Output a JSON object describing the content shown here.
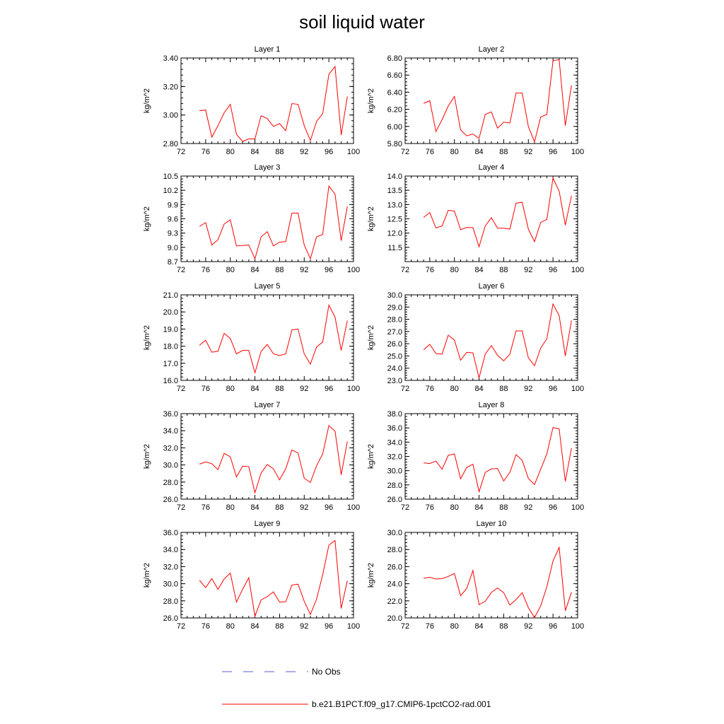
{
  "title": "soil liquid water",
  "legend": {
    "obs_label": "No Obs",
    "obs_color": "#5b5bd6",
    "model_label": "b.e21.B1PCT.f09_g17.CMIP6-1pctCO2-rad.001",
    "model_color": "#ff0000"
  },
  "chart_data": [
    {
      "type": "line",
      "title": "Layer 1",
      "ylabel": "kg/m^2",
      "xlim": [
        72,
        100
      ],
      "ylim": [
        2.8,
        3.4
      ],
      "xticks": [
        72,
        76,
        80,
        84,
        88,
        92,
        96,
        100
      ],
      "yticks": [
        "2.80",
        "3.00",
        "3.20",
        "3.40"
      ],
      "series": [
        {
          "color": "#ff0000",
          "x": [
            75,
            76,
            77,
            78,
            79,
            80,
            81,
            82,
            83,
            84,
            85,
            86,
            87,
            88,
            89,
            90,
            91,
            92,
            93,
            94,
            95,
            96,
            97,
            98,
            99
          ],
          "values": [
            3.03,
            3.035,
            2.845,
            2.925,
            3.015,
            3.075,
            2.865,
            2.815,
            2.832,
            2.832,
            2.995,
            2.975,
            2.92,
            2.94,
            2.89,
            3.08,
            3.075,
            2.925,
            2.82,
            2.955,
            3.01,
            3.285,
            3.34,
            2.86,
            3.13
          ]
        }
      ]
    },
    {
      "type": "line",
      "title": "Layer 2",
      "ylabel": "kg/m^2",
      "xlim": [
        72,
        100
      ],
      "ylim": [
        5.8,
        6.8
      ],
      "xticks": [
        72,
        76,
        80,
        84,
        88,
        92,
        96,
        100
      ],
      "yticks": [
        "5.80",
        "6.00",
        "6.20",
        "6.40",
        "6.60",
        "6.80"
      ],
      "series": [
        {
          "color": "#ff0000",
          "x": [
            75,
            76,
            77,
            78,
            79,
            80,
            81,
            82,
            83,
            84,
            85,
            86,
            87,
            88,
            89,
            90,
            91,
            92,
            93,
            94,
            95,
            96,
            97,
            98,
            99
          ],
          "values": [
            6.27,
            6.3,
            5.94,
            6.08,
            6.24,
            6.35,
            5.96,
            5.89,
            5.91,
            5.86,
            6.14,
            6.17,
            5.98,
            6.05,
            6.04,
            6.39,
            6.39,
            6.0,
            5.82,
            6.11,
            6.14,
            6.77,
            6.78,
            6.01,
            6.48
          ]
        }
      ]
    },
    {
      "type": "line",
      "title": "Layer 3",
      "ylabel": "kg/m^2",
      "xlim": [
        72,
        100
      ],
      "ylim": [
        8.7,
        10.5
      ],
      "xticks": [
        72,
        76,
        80,
        84,
        88,
        92,
        96,
        100
      ],
      "yticks": [
        "8.7",
        "9.0",
        "9.3",
        "9.6",
        "9.9",
        "10.2",
        "10.5"
      ],
      "series": [
        {
          "color": "#ff0000",
          "x": [
            75,
            76,
            77,
            78,
            79,
            80,
            81,
            82,
            83,
            84,
            85,
            86,
            87,
            88,
            89,
            90,
            91,
            92,
            93,
            94,
            95,
            96,
            97,
            98,
            99
          ],
          "values": [
            9.44,
            9.52,
            9.05,
            9.16,
            9.49,
            9.58,
            9.03,
            9.04,
            9.05,
            8.76,
            9.22,
            9.33,
            9.03,
            9.11,
            9.12,
            9.72,
            9.72,
            9.05,
            8.76,
            9.22,
            9.27,
            10.29,
            10.12,
            9.14,
            9.86
          ]
        }
      ]
    },
    {
      "type": "line",
      "title": "Layer 4",
      "ylabel": "kg/m^2",
      "xlim": [
        72,
        100
      ],
      "ylim": [
        11.0,
        14.0
      ],
      "xticks": [
        72,
        76,
        80,
        84,
        88,
        92,
        96,
        100
      ],
      "yticks": [
        "11.5",
        "12.0",
        "12.5",
        "13.0",
        "13.5",
        "14.0"
      ],
      "series": [
        {
          "color": "#ff0000",
          "x": [
            75,
            76,
            77,
            78,
            79,
            80,
            81,
            82,
            83,
            84,
            85,
            86,
            87,
            88,
            89,
            90,
            91,
            92,
            93,
            94,
            95,
            96,
            97,
            98,
            99
          ],
          "values": [
            12.55,
            12.72,
            12.18,
            12.25,
            12.8,
            12.77,
            12.12,
            12.2,
            12.19,
            11.52,
            12.25,
            12.54,
            12.17,
            12.17,
            12.14,
            13.05,
            13.08,
            12.14,
            11.7,
            12.37,
            12.48,
            13.93,
            13.47,
            12.28,
            13.31
          ]
        }
      ]
    },
    {
      "type": "line",
      "title": "Layer 5",
      "ylabel": "kg/m^2",
      "xlim": [
        72,
        100
      ],
      "ylim": [
        16.0,
        21.0
      ],
      "xticks": [
        72,
        76,
        80,
        84,
        88,
        92,
        96,
        100
      ],
      "yticks": [
        "16.0",
        "17.0",
        "18.0",
        "19.0",
        "20.0",
        "21.0"
      ],
      "series": [
        {
          "color": "#ff0000",
          "x": [
            75,
            76,
            77,
            78,
            79,
            80,
            81,
            82,
            83,
            84,
            85,
            86,
            87,
            88,
            89,
            90,
            91,
            92,
            93,
            94,
            95,
            96,
            97,
            98,
            99
          ],
          "values": [
            18.05,
            18.35,
            17.65,
            17.7,
            18.75,
            18.45,
            17.55,
            17.75,
            17.75,
            16.45,
            17.7,
            18.1,
            17.55,
            17.45,
            17.55,
            18.95,
            19.0,
            17.55,
            16.95,
            17.95,
            18.25,
            20.4,
            19.7,
            17.75,
            19.5
          ]
        }
      ]
    },
    {
      "type": "line",
      "title": "Layer 6",
      "ylabel": "kg/m^2",
      "xlim": [
        72,
        100
      ],
      "ylim": [
        23.0,
        30.0
      ],
      "xticks": [
        72,
        76,
        80,
        84,
        88,
        92,
        96,
        100
      ],
      "yticks": [
        "23.0",
        "24.0",
        "25.0",
        "26.0",
        "27.0",
        "28.0",
        "29.0",
        "30.0"
      ],
      "series": [
        {
          "color": "#ff0000",
          "x": [
            75,
            76,
            77,
            78,
            79,
            80,
            81,
            82,
            83,
            84,
            85,
            86,
            87,
            88,
            89,
            90,
            91,
            92,
            93,
            94,
            95,
            96,
            97,
            98,
            99
          ],
          "values": [
            25.5,
            25.95,
            25.2,
            25.15,
            26.7,
            26.3,
            24.65,
            25.3,
            25.25,
            23.2,
            25.15,
            25.85,
            25.05,
            24.6,
            25.15,
            27.05,
            27.05,
            24.85,
            24.2,
            25.65,
            26.4,
            29.25,
            28.3,
            25.0,
            27.9
          ]
        }
      ]
    },
    {
      "type": "line",
      "title": "Layer 7",
      "ylabel": "kg/m^2",
      "xlim": [
        72,
        100
      ],
      "ylim": [
        26.0,
        36.0
      ],
      "xticks": [
        72,
        76,
        80,
        84,
        88,
        92,
        96,
        100
      ],
      "yticks": [
        "26.0",
        "28.0",
        "30.0",
        "32.0",
        "34.0",
        "36.0"
      ],
      "series": [
        {
          "color": "#ff0000",
          "x": [
            75,
            76,
            77,
            78,
            79,
            80,
            81,
            82,
            83,
            84,
            85,
            86,
            87,
            88,
            89,
            90,
            91,
            92,
            93,
            94,
            95,
            96,
            97,
            98,
            99
          ],
          "values": [
            30.1,
            30.35,
            30.15,
            29.45,
            31.35,
            30.95,
            28.6,
            29.85,
            29.8,
            26.75,
            29.05,
            30.05,
            29.55,
            28.25,
            29.55,
            31.75,
            31.4,
            28.45,
            27.95,
            29.9,
            31.3,
            34.6,
            33.95,
            28.85,
            32.75
          ]
        }
      ]
    },
    {
      "type": "line",
      "title": "Layer 8",
      "ylabel": "kg/m^2",
      "xlim": [
        72,
        100
      ],
      "ylim": [
        26.0,
        38.0
      ],
      "xticks": [
        72,
        76,
        80,
        84,
        88,
        92,
        96,
        100
      ],
      "yticks": [
        "26.0",
        "28.0",
        "30.0",
        "32.0",
        "34.0",
        "36.0",
        "38.0"
      ],
      "series": [
        {
          "color": "#ff0000",
          "x": [
            75,
            76,
            77,
            78,
            79,
            80,
            81,
            82,
            83,
            84,
            85,
            86,
            87,
            88,
            89,
            90,
            91,
            92,
            93,
            94,
            95,
            96,
            97,
            98,
            99
          ],
          "values": [
            31.1,
            31.0,
            31.35,
            30.2,
            32.15,
            32.35,
            28.85,
            30.45,
            30.9,
            27.05,
            29.75,
            30.25,
            30.3,
            28.55,
            29.75,
            32.25,
            31.45,
            28.9,
            28.05,
            30.2,
            32.35,
            36.05,
            35.85,
            28.5,
            33.15
          ]
        }
      ]
    },
    {
      "type": "line",
      "title": "Layer 9",
      "ylabel": "kg/m^2",
      "xlim": [
        72,
        100
      ],
      "ylim": [
        26.0,
        36.0
      ],
      "xticks": [
        72,
        76,
        80,
        84,
        88,
        92,
        96,
        100
      ],
      "yticks": [
        "26.0",
        "28.0",
        "30.0",
        "32.0",
        "34.0",
        "36.0"
      ],
      "series": [
        {
          "color": "#ff0000",
          "x": [
            75,
            76,
            77,
            78,
            79,
            80,
            81,
            82,
            83,
            84,
            85,
            86,
            87,
            88,
            89,
            90,
            91,
            92,
            93,
            94,
            95,
            96,
            97,
            98,
            99
          ],
          "values": [
            30.4,
            29.55,
            30.6,
            29.35,
            30.55,
            31.25,
            27.85,
            29.35,
            30.7,
            26.2,
            28.1,
            28.5,
            29.05,
            27.85,
            27.9,
            29.85,
            29.95,
            27.95,
            26.4,
            28.2,
            31.05,
            34.5,
            35.05,
            27.1,
            30.35
          ]
        }
      ]
    },
    {
      "type": "line",
      "title": "Layer 10",
      "ylabel": "kg/m^2",
      "xlim": [
        72,
        100
      ],
      "ylim": [
        20.0,
        30.0
      ],
      "xticks": [
        72,
        76,
        80,
        84,
        88,
        92,
        96,
        100
      ],
      "yticks": [
        "20.0",
        "22.0",
        "24.0",
        "26.0",
        "28.0",
        "30.0"
      ],
      "series": [
        {
          "color": "#ff0000",
          "x": [
            75,
            76,
            77,
            78,
            79,
            80,
            81,
            82,
            83,
            84,
            85,
            86,
            87,
            88,
            89,
            90,
            91,
            92,
            93,
            94,
            95,
            96,
            97,
            98,
            99
          ],
          "values": [
            24.65,
            24.75,
            24.55,
            24.6,
            24.85,
            25.2,
            22.6,
            23.45,
            25.55,
            21.55,
            21.95,
            23.0,
            23.5,
            22.95,
            21.5,
            22.15,
            22.95,
            21.2,
            20.05,
            21.4,
            23.65,
            26.65,
            28.25,
            20.85,
            23.0
          ]
        }
      ]
    }
  ]
}
